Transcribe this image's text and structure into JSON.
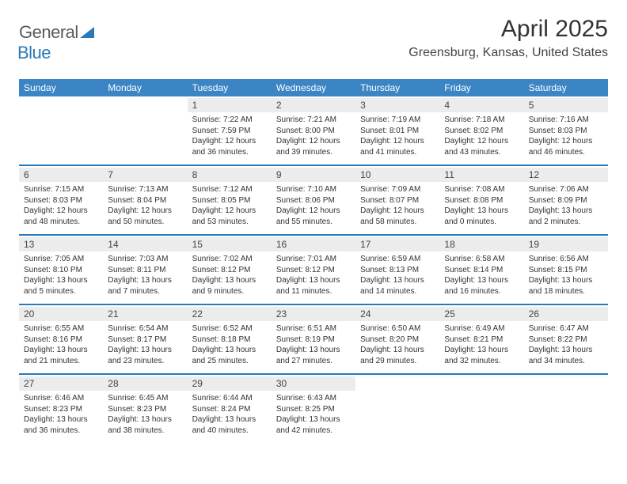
{
  "logo": {
    "word1": "General",
    "word2": "Blue"
  },
  "title": "April 2025",
  "location": "Greensburg, Kansas, United States",
  "colors": {
    "header_bg": "#3b85c4",
    "rule": "#2a7ab9",
    "daybar_bg": "#ececec",
    "text": "#333333",
    "background": "#ffffff"
  },
  "day_labels": [
    "Sunday",
    "Monday",
    "Tuesday",
    "Wednesday",
    "Thursday",
    "Friday",
    "Saturday"
  ],
  "weeks": [
    [
      null,
      null,
      {
        "d": "1",
        "sr": "7:22 AM",
        "ss": "7:59 PM",
        "dl": "12 hours and 36 minutes."
      },
      {
        "d": "2",
        "sr": "7:21 AM",
        "ss": "8:00 PM",
        "dl": "12 hours and 39 minutes."
      },
      {
        "d": "3",
        "sr": "7:19 AM",
        "ss": "8:01 PM",
        "dl": "12 hours and 41 minutes."
      },
      {
        "d": "4",
        "sr": "7:18 AM",
        "ss": "8:02 PM",
        "dl": "12 hours and 43 minutes."
      },
      {
        "d": "5",
        "sr": "7:16 AM",
        "ss": "8:03 PM",
        "dl": "12 hours and 46 minutes."
      }
    ],
    [
      {
        "d": "6",
        "sr": "7:15 AM",
        "ss": "8:03 PM",
        "dl": "12 hours and 48 minutes."
      },
      {
        "d": "7",
        "sr": "7:13 AM",
        "ss": "8:04 PM",
        "dl": "12 hours and 50 minutes."
      },
      {
        "d": "8",
        "sr": "7:12 AM",
        "ss": "8:05 PM",
        "dl": "12 hours and 53 minutes."
      },
      {
        "d": "9",
        "sr": "7:10 AM",
        "ss": "8:06 PM",
        "dl": "12 hours and 55 minutes."
      },
      {
        "d": "10",
        "sr": "7:09 AM",
        "ss": "8:07 PM",
        "dl": "12 hours and 58 minutes."
      },
      {
        "d": "11",
        "sr": "7:08 AM",
        "ss": "8:08 PM",
        "dl": "13 hours and 0 minutes."
      },
      {
        "d": "12",
        "sr": "7:06 AM",
        "ss": "8:09 PM",
        "dl": "13 hours and 2 minutes."
      }
    ],
    [
      {
        "d": "13",
        "sr": "7:05 AM",
        "ss": "8:10 PM",
        "dl": "13 hours and 5 minutes."
      },
      {
        "d": "14",
        "sr": "7:03 AM",
        "ss": "8:11 PM",
        "dl": "13 hours and 7 minutes."
      },
      {
        "d": "15",
        "sr": "7:02 AM",
        "ss": "8:12 PM",
        "dl": "13 hours and 9 minutes."
      },
      {
        "d": "16",
        "sr": "7:01 AM",
        "ss": "8:12 PM",
        "dl": "13 hours and 11 minutes."
      },
      {
        "d": "17",
        "sr": "6:59 AM",
        "ss": "8:13 PM",
        "dl": "13 hours and 14 minutes."
      },
      {
        "d": "18",
        "sr": "6:58 AM",
        "ss": "8:14 PM",
        "dl": "13 hours and 16 minutes."
      },
      {
        "d": "19",
        "sr": "6:56 AM",
        "ss": "8:15 PM",
        "dl": "13 hours and 18 minutes."
      }
    ],
    [
      {
        "d": "20",
        "sr": "6:55 AM",
        "ss": "8:16 PM",
        "dl": "13 hours and 21 minutes."
      },
      {
        "d": "21",
        "sr": "6:54 AM",
        "ss": "8:17 PM",
        "dl": "13 hours and 23 minutes."
      },
      {
        "d": "22",
        "sr": "6:52 AM",
        "ss": "8:18 PM",
        "dl": "13 hours and 25 minutes."
      },
      {
        "d": "23",
        "sr": "6:51 AM",
        "ss": "8:19 PM",
        "dl": "13 hours and 27 minutes."
      },
      {
        "d": "24",
        "sr": "6:50 AM",
        "ss": "8:20 PM",
        "dl": "13 hours and 29 minutes."
      },
      {
        "d": "25",
        "sr": "6:49 AM",
        "ss": "8:21 PM",
        "dl": "13 hours and 32 minutes."
      },
      {
        "d": "26",
        "sr": "6:47 AM",
        "ss": "8:22 PM",
        "dl": "13 hours and 34 minutes."
      }
    ],
    [
      {
        "d": "27",
        "sr": "6:46 AM",
        "ss": "8:23 PM",
        "dl": "13 hours and 36 minutes."
      },
      {
        "d": "28",
        "sr": "6:45 AM",
        "ss": "8:23 PM",
        "dl": "13 hours and 38 minutes."
      },
      {
        "d": "29",
        "sr": "6:44 AM",
        "ss": "8:24 PM",
        "dl": "13 hours and 40 minutes."
      },
      {
        "d": "30",
        "sr": "6:43 AM",
        "ss": "8:25 PM",
        "dl": "13 hours and 42 minutes."
      },
      null,
      null,
      null
    ]
  ],
  "labels": {
    "sunrise": "Sunrise:",
    "sunset": "Sunset:",
    "daylight": "Daylight:"
  }
}
